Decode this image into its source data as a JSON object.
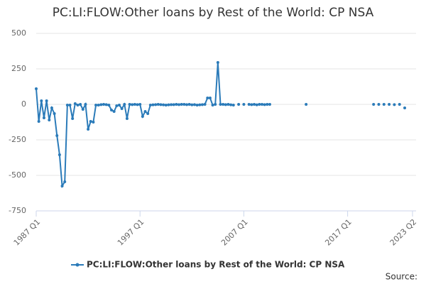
{
  "chart_data": {
    "type": "line",
    "title": "PC:LI:FLOW:Other loans by Rest of the World: CP NSA",
    "source": "Source:",
    "categories": [
      "1987 Q1",
      null,
      null,
      null,
      null,
      null,
      null,
      null,
      null,
      null,
      null,
      null,
      null,
      null,
      null,
      null,
      null,
      null,
      null,
      null,
      null,
      null,
      null,
      null,
      null,
      null,
      null,
      null,
      null,
      null,
      null,
      null,
      null,
      null,
      null,
      null,
      null,
      null,
      null,
      null,
      "1997 Q1",
      null,
      null,
      null,
      null,
      null,
      null,
      null,
      null,
      null,
      null,
      null,
      null,
      null,
      null,
      null,
      null,
      null,
      null,
      null,
      null,
      null,
      null,
      null,
      null,
      null,
      null,
      null,
      null,
      null,
      null,
      null,
      null,
      null,
      null,
      null,
      null,
      null,
      null,
      null,
      "2007 Q1",
      null,
      null,
      null,
      null,
      null,
      null,
      null,
      null,
      null,
      null,
      null,
      null,
      null,
      null,
      null,
      null,
      null,
      null,
      null,
      null,
      null,
      null,
      null,
      null,
      null,
      null,
      null,
      null,
      null,
      null,
      null,
      null,
      null,
      null,
      null,
      null,
      null,
      null,
      null,
      "2017 Q1",
      null,
      null,
      null,
      null,
      null,
      null,
      null,
      null,
      null,
      null,
      null,
      null,
      null,
      null,
      null,
      null,
      null,
      null,
      null,
      null,
      null,
      null,
      null,
      null,
      "2023 Q2"
    ],
    "series": [
      {
        "name": "PC:LI:FLOW:Other loans by Rest of the World: CP NSA",
        "color": "#2b7bb9",
        "values": [
          110,
          -120,
          25,
          -95,
          25,
          -110,
          -25,
          -65,
          -220,
          -355,
          -575,
          -545,
          -5,
          -5,
          -100,
          5,
          -5,
          0,
          -35,
          0,
          -175,
          -120,
          -125,
          -5,
          -5,
          -2,
          0,
          -2,
          -5,
          -40,
          -50,
          -10,
          -5,
          -30,
          0,
          -100,
          0,
          -2,
          0,
          -2,
          0,
          -85,
          -50,
          -65,
          -5,
          -3,
          -2,
          0,
          -2,
          -3,
          -5,
          -3,
          -2,
          -2,
          0,
          -2,
          0,
          0,
          -2,
          0,
          -3,
          -2,
          -5,
          -3,
          -2,
          0,
          45,
          45,
          -5,
          0,
          295,
          0,
          0,
          -2,
          0,
          -3,
          -5,
          null,
          0,
          null,
          0,
          null,
          0,
          -2,
          0,
          -3,
          0,
          0,
          -2,
          0,
          0,
          null,
          null,
          null,
          null,
          null,
          null,
          null,
          null,
          null,
          null,
          null,
          null,
          null,
          0,
          null,
          null,
          null,
          null,
          null,
          null,
          null,
          null,
          null,
          null,
          null,
          null,
          null,
          null,
          null,
          null,
          null,
          null,
          null,
          null,
          null,
          null,
          null,
          null,
          null,
          0,
          null,
          0,
          null,
          0,
          null,
          0,
          null,
          -2,
          null,
          0,
          null,
          -25,
          null,
          null,
          null
        ]
      }
    ],
    "ylim": [
      -750,
      500
    ],
    "yticks": [
      500,
      250,
      0,
      -250,
      -500,
      -750
    ],
    "grid": true,
    "legend": "bottom"
  }
}
